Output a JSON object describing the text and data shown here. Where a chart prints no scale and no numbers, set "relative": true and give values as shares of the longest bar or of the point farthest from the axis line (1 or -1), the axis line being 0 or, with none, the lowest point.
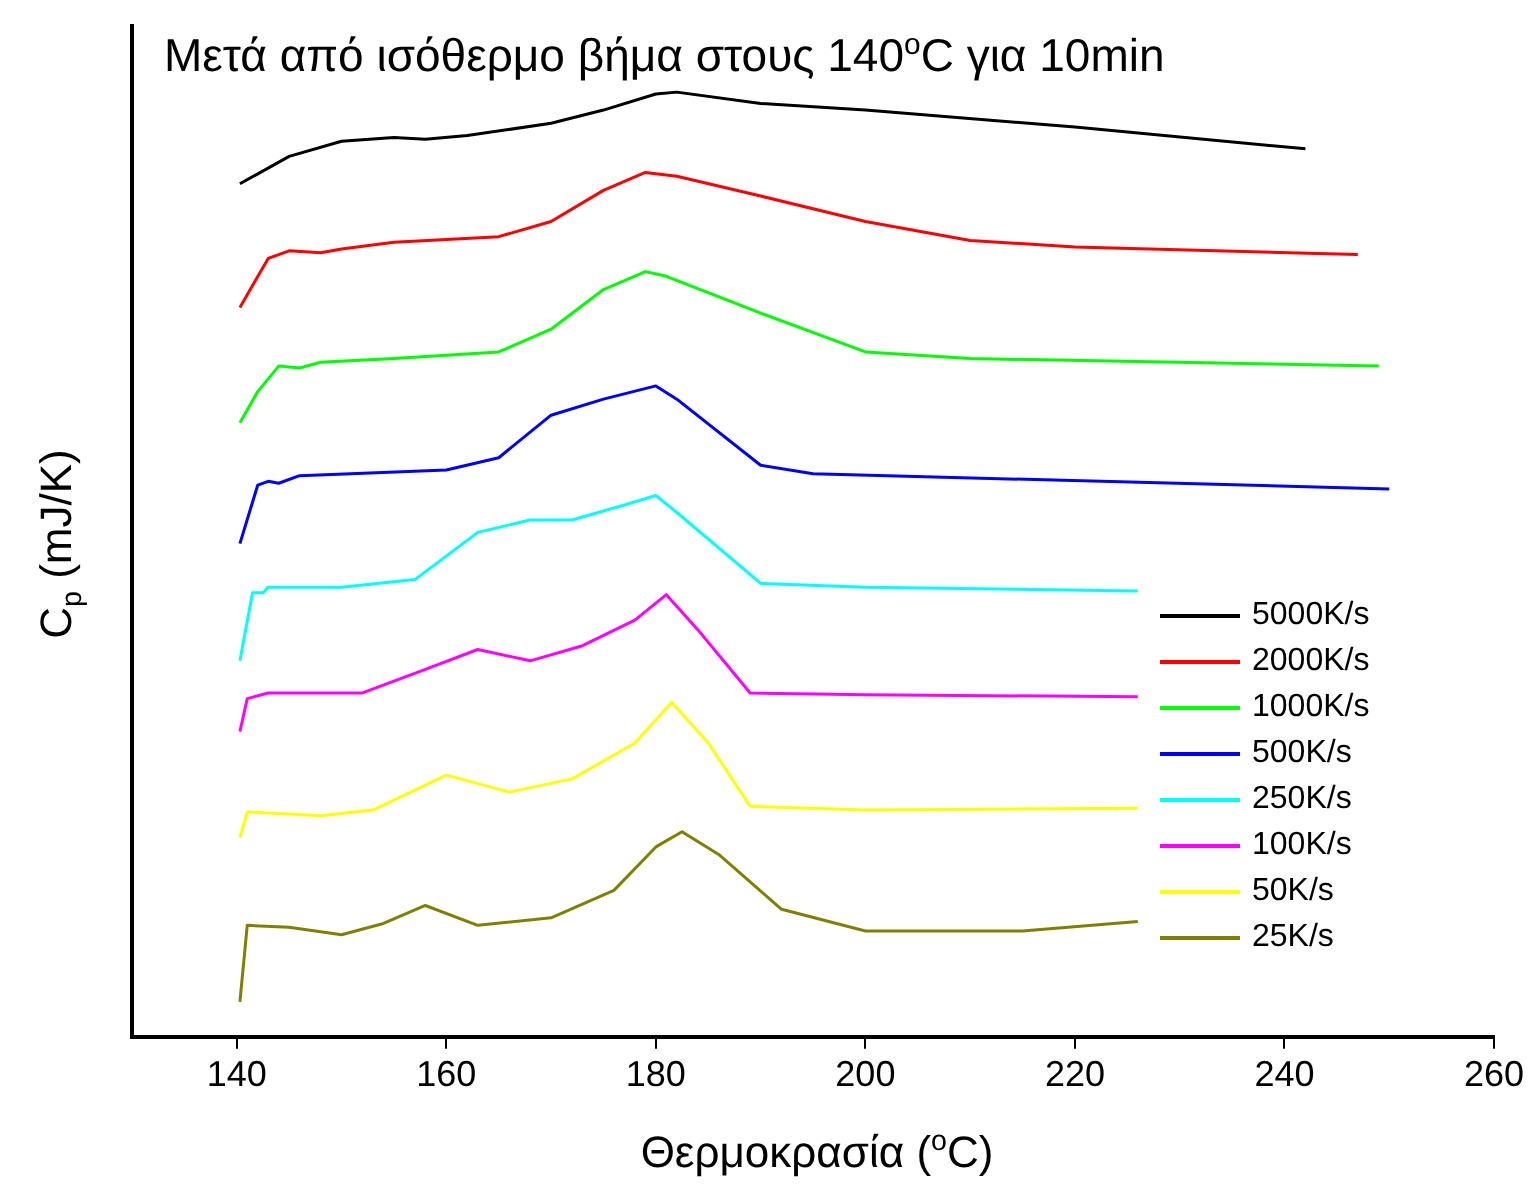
{
  "chart_data": {
    "type": "line",
    "title": "Μετά από ισόθερμο βήμα στους 140$^{o}$C για 10min",
    "xlabel": "Θερμοκρασία ($^{o}$C)",
    "ylabel": "C$_{p}$ (mJ/K)",
    "relative": true,
    "xlim": [
      130,
      260
    ],
    "xticks": [
      140,
      160,
      180,
      200,
      220,
      240,
      260
    ],
    "grid": false,
    "legend": "right",
    "marker": "none",
    "line_style": "solid",
    "series": [
      {
        "name": "5000K/s",
        "color": "#000000",
        "x": [
          140.3,
          145,
          150,
          155,
          158,
          162,
          170,
          175,
          180,
          182,
          190,
          200,
          220,
          242
        ],
        "values": [
          0.903,
          0.932,
          0.948,
          0.952,
          0.95,
          0.954,
          0.967,
          0.981,
          0.998,
          1.0,
          0.988,
          0.981,
          0.963,
          0.94
        ]
      },
      {
        "name": "2000K/s",
        "color": "#ff0000",
        "x": [
          140.3,
          143,
          145,
          148,
          150,
          155,
          165,
          170,
          175,
          179,
          182,
          190,
          200,
          210,
          220,
          247
        ],
        "values": [
          0.772,
          0.824,
          0.832,
          0.83,
          0.834,
          0.841,
          0.847,
          0.863,
          0.896,
          0.915,
          0.911,
          0.89,
          0.863,
          0.843,
          0.836,
          0.828
        ]
      },
      {
        "name": "1000K/s",
        "color": "#00ff00",
        "x": [
          140.3,
          142,
          144,
          146,
          148,
          155,
          165,
          170,
          175,
          179,
          181,
          190,
          200,
          210,
          249
        ],
        "values": [
          0.65,
          0.683,
          0.71,
          0.708,
          0.714,
          0.718,
          0.725,
          0.749,
          0.791,
          0.81,
          0.805,
          0.766,
          0.725,
          0.718,
          0.71
        ]
      },
      {
        "name": "500K/s",
        "color": "#0000ff",
        "x": [
          140.3,
          142,
          143,
          144,
          146,
          160,
          165,
          170,
          175,
          180,
          182,
          190,
          195,
          250
        ],
        "values": [
          0.522,
          0.584,
          0.588,
          0.586,
          0.594,
          0.6,
          0.613,
          0.658,
          0.675,
          0.689,
          0.675,
          0.605,
          0.596,
          0.58
        ]
      },
      {
        "name": "250K/s",
        "color": "#00ffff",
        "x": [
          140.3,
          141.5,
          142.5,
          143,
          150,
          157,
          163,
          168,
          172,
          177,
          180,
          182,
          190,
          200,
          226
        ],
        "values": [
          0.398,
          0.47,
          0.47,
          0.476,
          0.476,
          0.484,
          0.534,
          0.547,
          0.547,
          0.563,
          0.573,
          0.555,
          0.48,
          0.476,
          0.472
        ]
      },
      {
        "name": "100K/s",
        "color": "#ff00ff",
        "x": [
          140.3,
          141,
          143,
          152,
          158,
          163,
          168,
          173,
          178,
          181,
          184,
          189,
          200,
          226
        ],
        "values": [
          0.323,
          0.358,
          0.364,
          0.364,
          0.389,
          0.41,
          0.398,
          0.414,
          0.441,
          0.468,
          0.431,
          0.364,
          0.362,
          0.36
        ]
      },
      {
        "name": "50K/s",
        "color": "#ffff00",
        "x": [
          140.3,
          141,
          148,
          153,
          160,
          166,
          172,
          178,
          181.5,
          185,
          189,
          200,
          226
        ],
        "values": [
          0.211,
          0.238,
          0.234,
          0.24,
          0.277,
          0.259,
          0.273,
          0.311,
          0.354,
          0.311,
          0.244,
          0.24,
          0.242
        ]
      },
      {
        "name": "25K/s",
        "color": "#808000",
        "x": [
          140.3,
          141,
          145,
          150,
          154,
          158,
          163,
          170,
          176,
          180,
          182.5,
          186,
          192,
          200,
          215,
          226
        ],
        "values": [
          0.037,
          0.118,
          0.116,
          0.108,
          0.12,
          0.139,
          0.118,
          0.126,
          0.155,
          0.201,
          0.217,
          0.193,
          0.135,
          0.112,
          0.112,
          0.122
        ]
      }
    ]
  }
}
